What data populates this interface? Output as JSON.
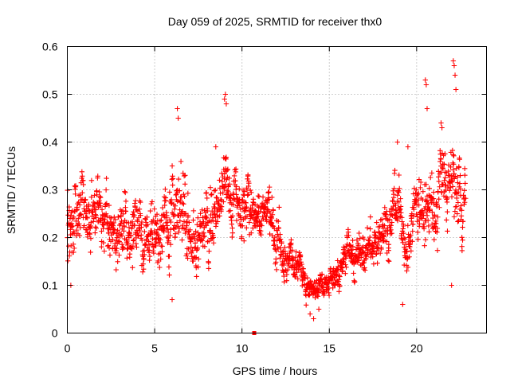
{
  "chart_data": {
    "type": "scatter",
    "title": "Day 059 of 2025, SRMTID for receiver thx0",
    "xlabel": "GPS time / hours",
    "ylabel": "SRMTID / TECUs",
    "xlim": [
      0,
      24
    ],
    "ylim": [
      0,
      0.6
    ],
    "x_ticks": [
      0,
      5,
      10,
      15,
      20
    ],
    "x_tick_labels": [
      "0",
      "5",
      "10",
      "15",
      "20"
    ],
    "y_ticks": [
      0,
      0.1,
      0.2,
      0.3,
      0.4,
      0.5,
      0.6
    ],
    "y_tick_labels": [
      "0",
      "0.1",
      "0.2",
      "0.3",
      "0.4",
      "0.5",
      "0.6"
    ],
    "grid": true,
    "marker": "+",
    "color": "#ff0000",
    "trend": [
      [
        0.0,
        0.22,
        0.06
      ],
      [
        0.5,
        0.23,
        0.06
      ],
      [
        1.0,
        0.27,
        0.05
      ],
      [
        1.5,
        0.26,
        0.05
      ],
      [
        2.0,
        0.23,
        0.05
      ],
      [
        2.5,
        0.22,
        0.05
      ],
      [
        3.0,
        0.21,
        0.05
      ],
      [
        3.5,
        0.2,
        0.05
      ],
      [
        4.0,
        0.21,
        0.05
      ],
      [
        4.5,
        0.2,
        0.05
      ],
      [
        5.0,
        0.21,
        0.05
      ],
      [
        5.5,
        0.22,
        0.05
      ],
      [
        6.0,
        0.24,
        0.06
      ],
      [
        6.5,
        0.26,
        0.07
      ],
      [
        7.0,
        0.21,
        0.05
      ],
      [
        7.5,
        0.2,
        0.05
      ],
      [
        8.0,
        0.23,
        0.05
      ],
      [
        8.5,
        0.27,
        0.05
      ],
      [
        9.0,
        0.31,
        0.05
      ],
      [
        9.5,
        0.28,
        0.05
      ],
      [
        10.0,
        0.26,
        0.05
      ],
      [
        10.5,
        0.25,
        0.05
      ],
      [
        11.0,
        0.26,
        0.04
      ],
      [
        11.5,
        0.25,
        0.04
      ],
      [
        12.0,
        0.2,
        0.04
      ],
      [
        12.5,
        0.16,
        0.03
      ],
      [
        13.0,
        0.15,
        0.03
      ],
      [
        13.5,
        0.12,
        0.03
      ],
      [
        14.0,
        0.09,
        0.02
      ],
      [
        14.5,
        0.09,
        0.02
      ],
      [
        15.0,
        0.1,
        0.02
      ],
      [
        15.5,
        0.13,
        0.03
      ],
      [
        16.0,
        0.17,
        0.03
      ],
      [
        16.5,
        0.16,
        0.03
      ],
      [
        17.0,
        0.18,
        0.04
      ],
      [
        17.5,
        0.2,
        0.04
      ],
      [
        18.0,
        0.21,
        0.04
      ],
      [
        18.5,
        0.24,
        0.05
      ],
      [
        19.0,
        0.28,
        0.05
      ],
      [
        19.3,
        0.16,
        0.03
      ],
      [
        19.6,
        0.2,
        0.05
      ],
      [
        20.0,
        0.3,
        0.05
      ],
      [
        20.5,
        0.26,
        0.05
      ],
      [
        21.0,
        0.25,
        0.05
      ],
      [
        21.5,
        0.33,
        0.06
      ],
      [
        22.0,
        0.3,
        0.06
      ],
      [
        22.5,
        0.28,
        0.06
      ],
      [
        22.8,
        0.27,
        0.05
      ]
    ],
    "outliers": [
      [
        6.3,
        0.47
      ],
      [
        6.35,
        0.45
      ],
      [
        9.0,
        0.49
      ],
      [
        9.05,
        0.5
      ],
      [
        9.1,
        0.48
      ],
      [
        20.5,
        0.53
      ],
      [
        20.55,
        0.52
      ],
      [
        20.6,
        0.47
      ],
      [
        22.1,
        0.57
      ],
      [
        22.15,
        0.56
      ],
      [
        22.2,
        0.54
      ],
      [
        22.25,
        0.51
      ],
      [
        21.4,
        0.44
      ],
      [
        21.45,
        0.43
      ],
      [
        13.9,
        0.04
      ],
      [
        14.1,
        0.03
      ],
      [
        14.4,
        0.05
      ],
      [
        19.2,
        0.06
      ],
      [
        6.0,
        0.07
      ],
      [
        0.2,
        0.1
      ],
      [
        22.0,
        0.1
      ],
      [
        8.5,
        0.39
      ],
      [
        18.9,
        0.4
      ],
      [
        19.5,
        0.39
      ]
    ],
    "special_point": {
      "x": 10.7,
      "y": 0.0,
      "marker": "square"
    },
    "points_per_hour": 80
  }
}
